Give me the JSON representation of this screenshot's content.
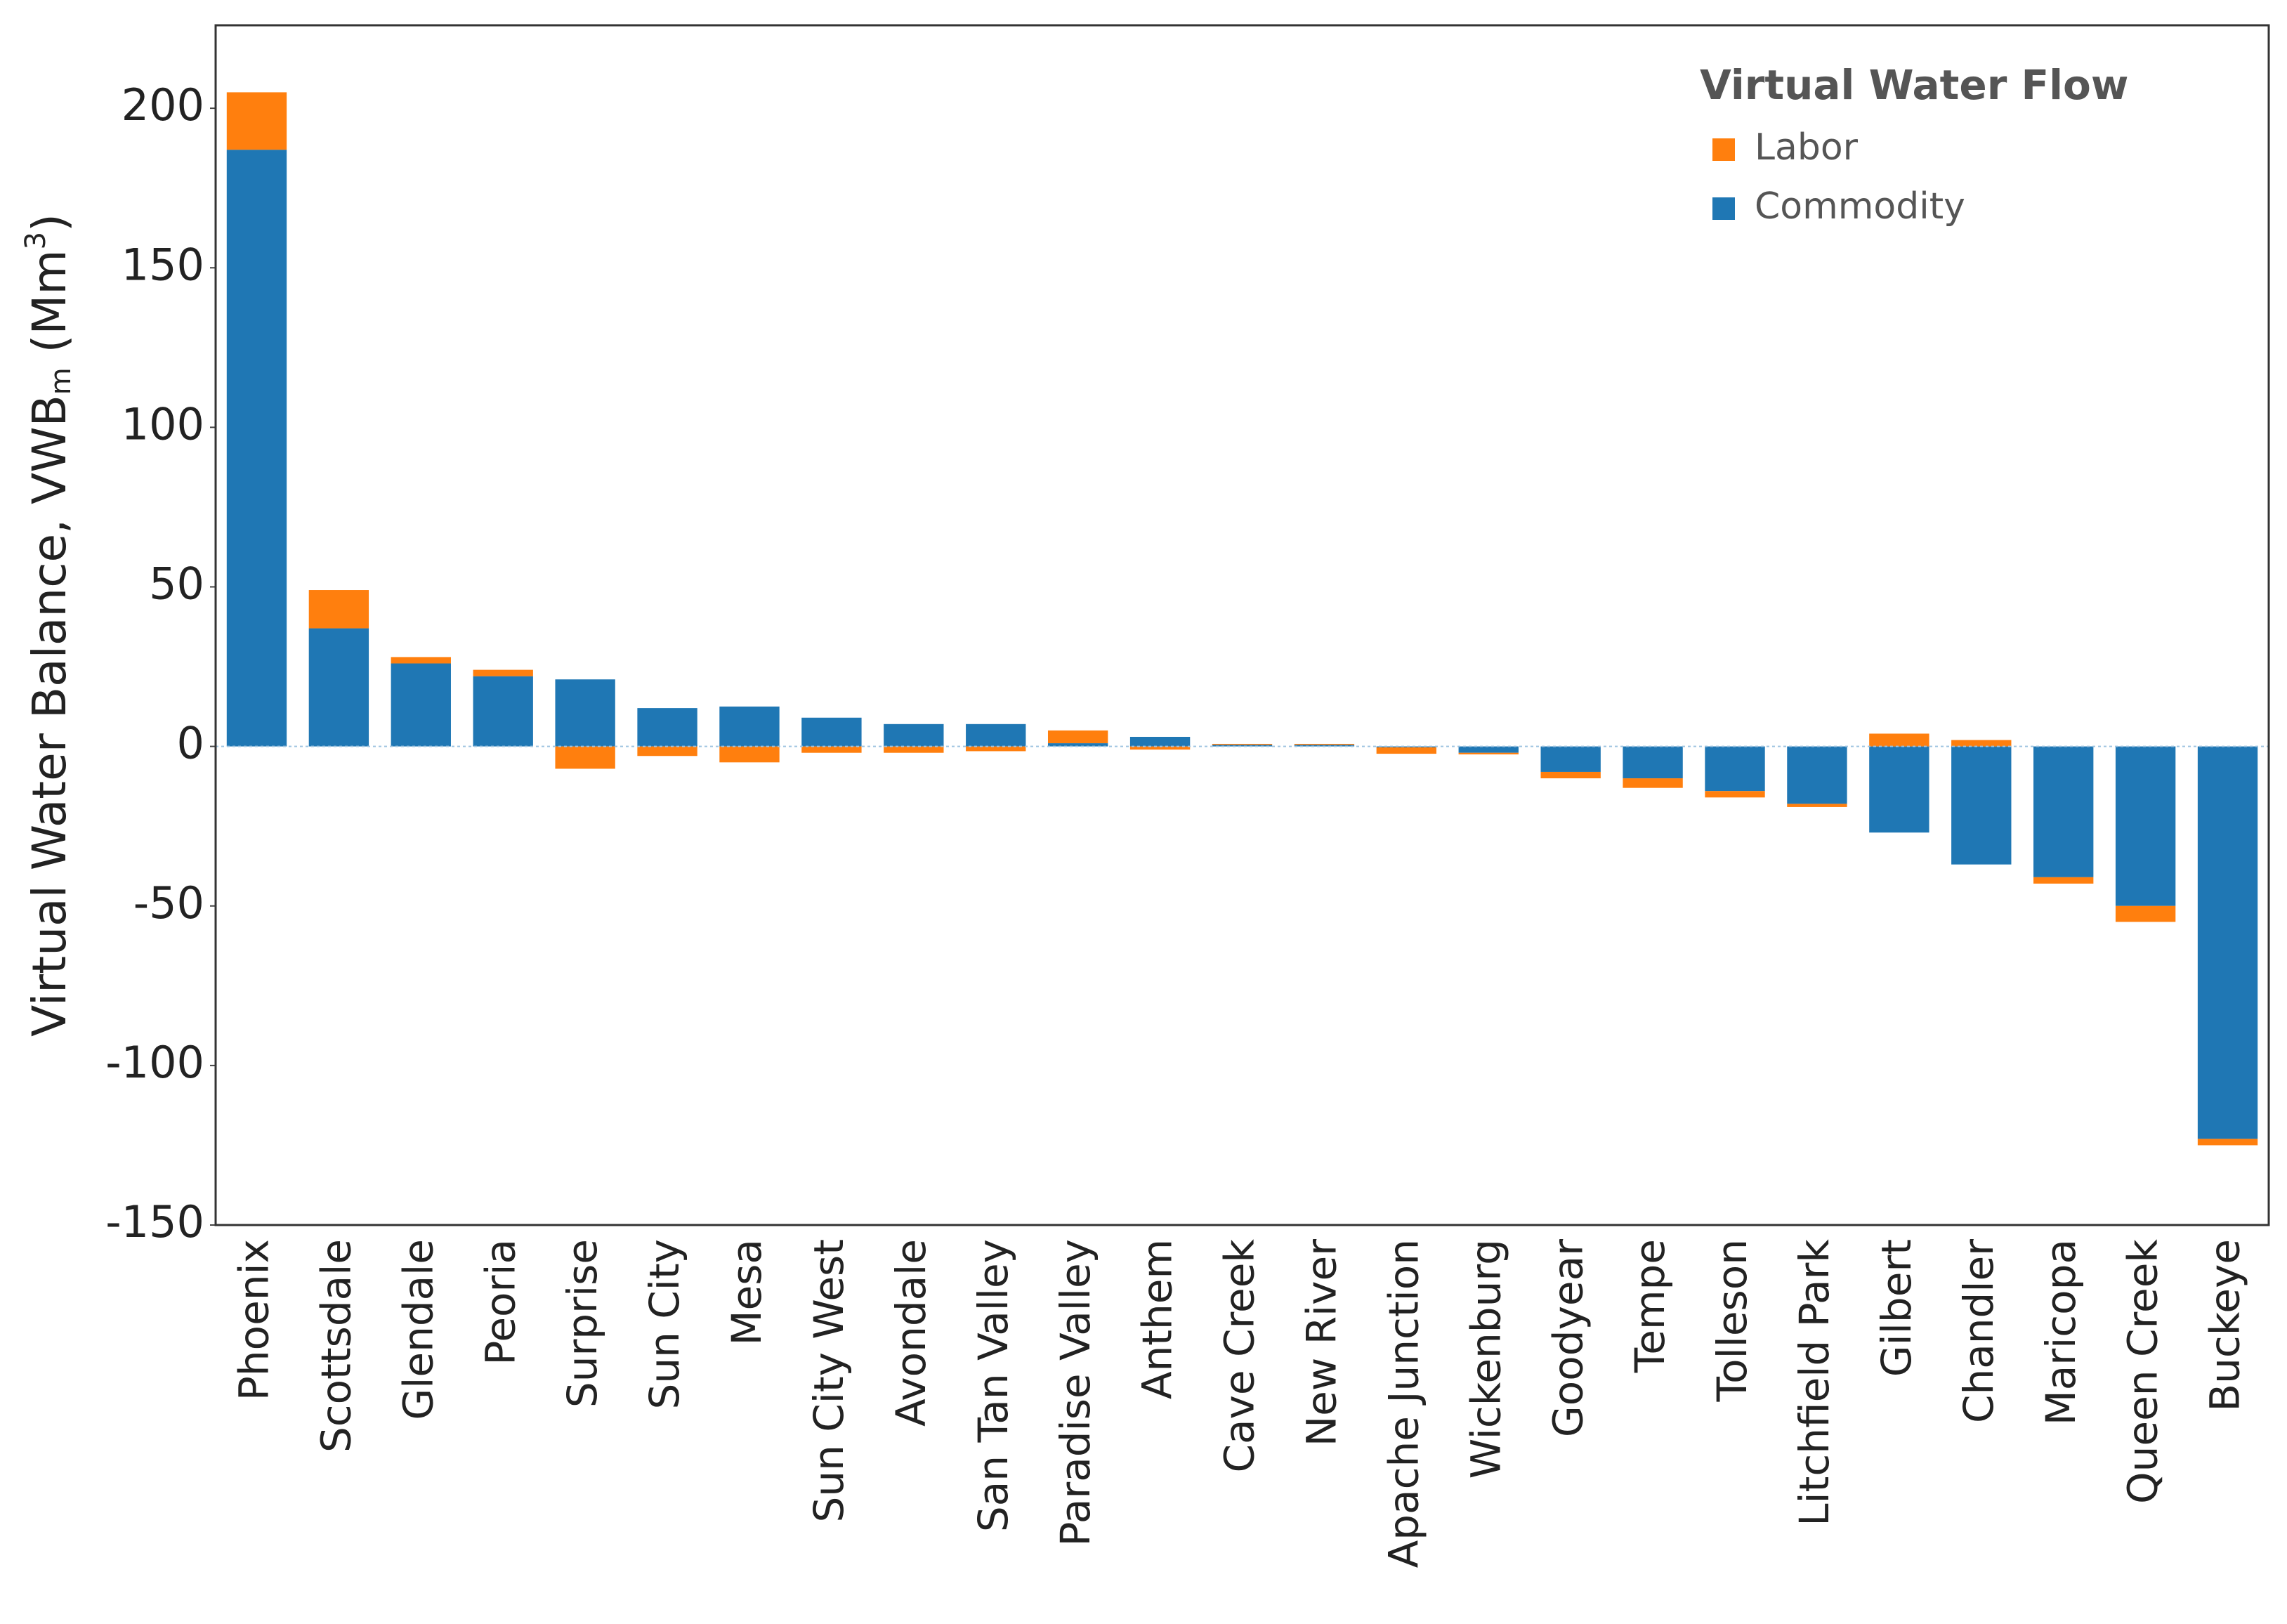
{
  "chart_data": {
    "type": "bar",
    "stacked": true,
    "ylabel": [
      "Virtual Water Balance, VWB",
      "m",
      " (Mm",
      "3",
      ")"
    ],
    "legend_title": "Virtual Water Flow",
    "categories": [
      "Phoenix",
      "Scottsdale",
      "Glendale",
      "Peoria",
      "Surprise",
      "Sun City",
      "Mesa",
      "Sun City West",
      "Avondale",
      "San Tan Valley",
      "Paradise Valley",
      "Anthem",
      "Cave Creek",
      "New River",
      "Apache Junction",
      "Wickenburg",
      "Goodyear",
      "Tempe",
      "Tolleson",
      "Litchfield Park",
      "Gilbert",
      "Chandler",
      "Maricopa",
      "Queen Creek",
      "Buckeye"
    ],
    "series": [
      {
        "name": "Labor",
        "color": "#ff7f0e",
        "values": [
          18,
          12,
          2,
          2,
          -7,
          -3,
          -5,
          -2,
          -2,
          -1.5,
          4,
          -1,
          0.3,
          0.3,
          -2,
          -0.5,
          -2,
          -3,
          -2,
          -1,
          4,
          2,
          -2,
          -5,
          -2
        ]
      },
      {
        "name": "Commodity",
        "color": "#1f77b4",
        "values": [
          187,
          37,
          26,
          22,
          21,
          12,
          12.5,
          9,
          7,
          7,
          1,
          3,
          0.5,
          0.5,
          -0.3,
          -2,
          -8,
          -10,
          -14,
          -18,
          -27,
          -37,
          -41,
          -50,
          -123
        ]
      }
    ],
    "ylim": [
      -150,
      226
    ],
    "yticks": [
      -150,
      -100,
      -50,
      0,
      50,
      100,
      150,
      200
    ],
    "legend": "top-right"
  }
}
